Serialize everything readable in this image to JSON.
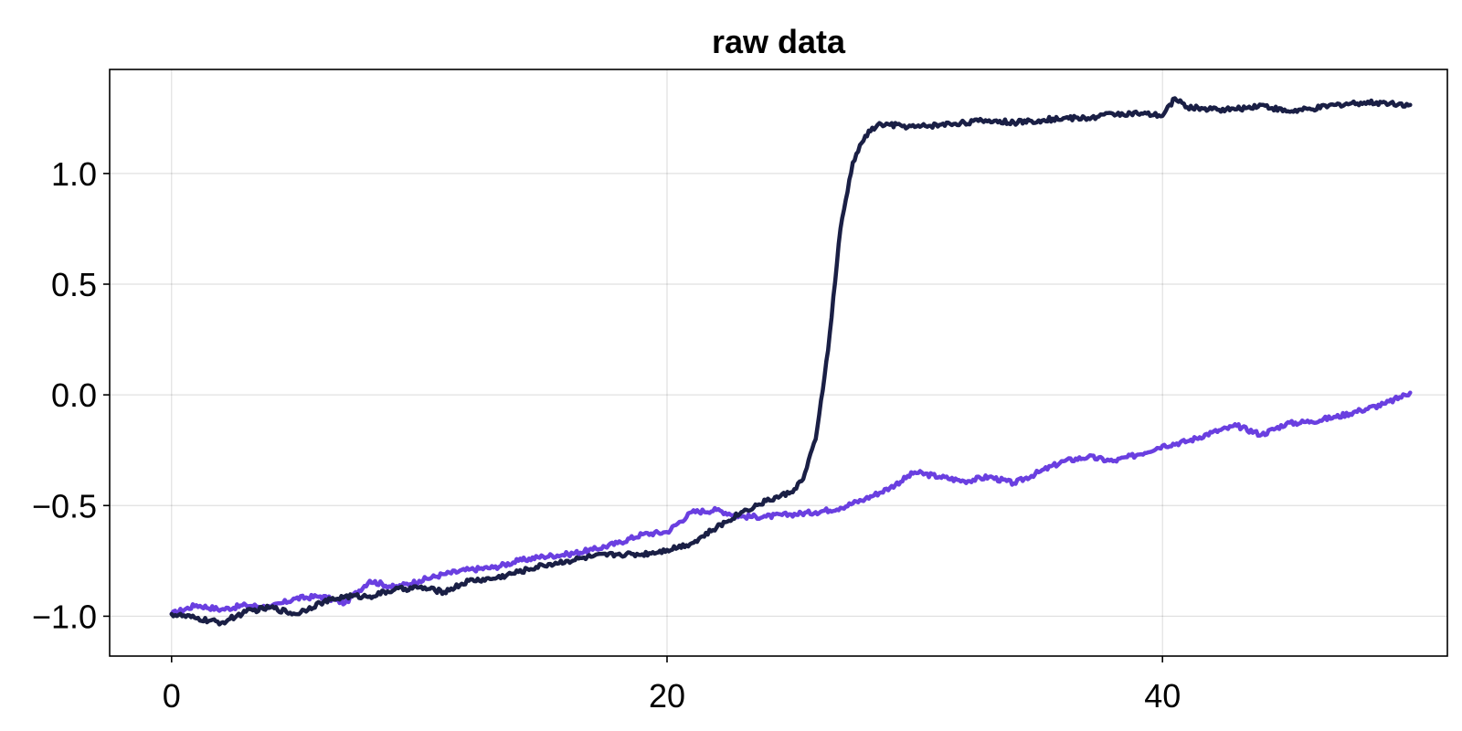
{
  "chart_data": {
    "type": "line",
    "title": "raw data",
    "xlabel": "",
    "ylabel": "",
    "xlim": [
      -2.5,
      51.5
    ],
    "ylim": [
      -1.18,
      1.47
    ],
    "x_ticks": [
      {
        "value": 0,
        "label": "0"
      },
      {
        "value": 20,
        "label": "20"
      },
      {
        "value": 40,
        "label": "40"
      }
    ],
    "y_ticks": [
      {
        "value": -1.0,
        "label": "−1.0"
      },
      {
        "value": -0.5,
        "label": "−0.5"
      },
      {
        "value": 0.0,
        "label": "0.0"
      },
      {
        "value": 0.5,
        "label": "0.5"
      },
      {
        "value": 1.0,
        "label": "1.0"
      }
    ],
    "grid": true,
    "legend": "none",
    "series": [
      {
        "color": "#6a3fe0",
        "x": [
          0,
          1,
          2,
          3,
          4,
          5,
          6,
          7,
          8,
          9,
          10,
          11,
          12,
          13,
          14,
          15,
          16,
          17,
          18,
          19,
          20,
          21,
          22,
          23,
          24,
          25,
          26,
          27,
          28,
          29,
          30,
          31,
          32,
          33,
          34,
          35,
          36,
          37,
          38,
          39,
          40,
          41,
          42,
          43,
          44,
          45,
          46,
          47,
          48,
          49,
          50
        ],
        "y": [
          -0.99,
          -0.95,
          -0.97,
          -0.95,
          -0.96,
          -0.92,
          -0.91,
          -0.94,
          -0.84,
          -0.87,
          -0.84,
          -0.81,
          -0.79,
          -0.78,
          -0.75,
          -0.73,
          -0.72,
          -0.7,
          -0.67,
          -0.63,
          -0.62,
          -0.53,
          -0.52,
          -0.55,
          -0.55,
          -0.54,
          -0.53,
          -0.51,
          -0.47,
          -0.42,
          -0.35,
          -0.37,
          -0.39,
          -0.37,
          -0.4,
          -0.35,
          -0.3,
          -0.28,
          -0.3,
          -0.27,
          -0.23,
          -0.21,
          -0.17,
          -0.14,
          -0.18,
          -0.13,
          -0.12,
          -0.1,
          -0.07,
          -0.04,
          0.01
        ]
      },
      {
        "color": "#1a1f45",
        "x": [
          0,
          1,
          2,
          3,
          4,
          5,
          6,
          7,
          8,
          9,
          10,
          11,
          12,
          13,
          14,
          15,
          16,
          17,
          18,
          19,
          20,
          21,
          22,
          23,
          24,
          25,
          25.5,
          26,
          26.5,
          27,
          27.5,
          28,
          28.5,
          29,
          30,
          31,
          32,
          33,
          34,
          35,
          36,
          37,
          38,
          39,
          40,
          40.5,
          41,
          42,
          43,
          44,
          45,
          46,
          47,
          48,
          49,
          50
        ],
        "y": [
          -0.99,
          -1.01,
          -1.03,
          -0.98,
          -0.96,
          -0.99,
          -0.94,
          -0.91,
          -0.91,
          -0.88,
          -0.87,
          -0.89,
          -0.84,
          -0.83,
          -0.8,
          -0.77,
          -0.75,
          -0.73,
          -0.72,
          -0.72,
          -0.7,
          -0.67,
          -0.6,
          -0.53,
          -0.48,
          -0.44,
          -0.38,
          -0.2,
          0.2,
          0.75,
          1.05,
          1.17,
          1.22,
          1.22,
          1.21,
          1.22,
          1.23,
          1.24,
          1.23,
          1.24,
          1.25,
          1.25,
          1.27,
          1.27,
          1.26,
          1.34,
          1.3,
          1.29,
          1.29,
          1.31,
          1.28,
          1.29,
          1.31,
          1.32,
          1.32,
          1.31
        ]
      }
    ]
  }
}
